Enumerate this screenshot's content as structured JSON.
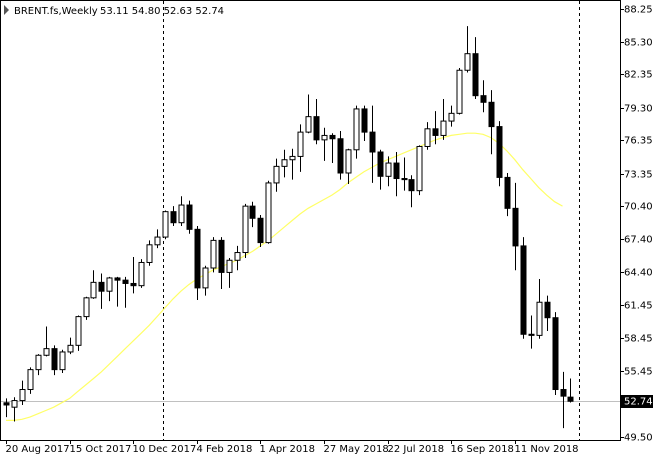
{
  "chart_data": {
    "type": "candlestick",
    "title": "BRENT.fs,Weekly",
    "ohlc_label": "53.11 54.80 52.63 52.74",
    "categories": [
      "20 Aug 2017",
      null,
      null,
      null,
      null,
      null,
      null,
      null,
      "15 Oct 2017",
      null,
      null,
      null,
      null,
      null,
      null,
      null,
      "10 Dec 2017",
      null,
      null,
      null,
      null,
      null,
      null,
      null,
      "4 Feb 2018",
      null,
      null,
      null,
      null,
      null,
      null,
      null,
      "1 Apr 2018",
      null,
      null,
      null,
      null,
      null,
      null,
      null,
      "27 May 2018",
      null,
      null,
      null,
      null,
      null,
      null,
      null,
      "22 Jul 2018",
      null,
      null,
      null,
      null,
      null,
      null,
      null,
      "16 Sep 2018",
      null,
      null,
      null,
      null,
      null,
      null,
      null,
      "11 Nov 2018",
      null,
      null,
      null,
      null,
      null,
      null,
      null
    ],
    "open": [
      52.6,
      52.2,
      52.8,
      53.8,
      55.6,
      56.9,
      57.5,
      55.6,
      57.2,
      57.8,
      60.4,
      62.1,
      63.5,
      62.7,
      63.9,
      63.7,
      63.4,
      63.2,
      65.3,
      66.9,
      67.6,
      69.9,
      68.9,
      70.5,
      68.3,
      63.0,
      64.8,
      67.3,
      64.4,
      65.5,
      66.2,
      70.4,
      69.3,
      67.1,
      72.5,
      74.0,
      74.6,
      74.9,
      77.1,
      78.5,
      76.4,
      76.8,
      76.5,
      73.4,
      75.5,
      79.2,
      77.1,
      75.3,
      73.1,
      74.3,
      72.9,
      72.8,
      71.8,
      75.8,
      77.4,
      76.8,
      78.1,
      78.8,
      82.7,
      84.2,
      80.4,
      79.8,
      77.6,
      73.0,
      70.2,
      66.8,
      58.8,
      58.7,
      61.7,
      60.3,
      53.8,
      53.11
    ],
    "high": [
      53.0,
      53.1,
      54.6,
      55.8,
      57.0,
      59.5,
      57.8,
      57.4,
      58.5,
      60.5,
      62.2,
      64.6,
      64.3,
      64.0,
      64.0,
      64.0,
      65.8,
      65.6,
      67.3,
      68.3,
      70.0,
      70.4,
      71.3,
      70.9,
      68.6,
      65.0,
      67.6,
      67.6,
      65.7,
      66.8,
      70.6,
      70.8,
      69.6,
      72.7,
      74.7,
      75.5,
      75.6,
      77.8,
      80.5,
      80.1,
      77.5,
      77.0,
      77.2,
      75.6,
      79.5,
      79.5,
      79.5,
      75.5,
      74.9,
      75.3,
      74.8,
      73.2,
      75.9,
      78.0,
      79.0,
      80.1,
      79.5,
      82.9,
      86.7,
      85.7,
      81.8,
      80.9,
      78.1,
      73.4,
      72.5,
      67.6,
      60.5,
      63.8,
      62.3,
      60.8,
      55.4,
      54.8
    ],
    "low": [
      51.3,
      50.9,
      52.4,
      53.4,
      55.1,
      56.8,
      55.1,
      55.3,
      57.0,
      57.3,
      60.1,
      62.0,
      61.1,
      61.8,
      61.3,
      61.2,
      62.5,
      63.0,
      65.0,
      66.6,
      67.4,
      68.6,
      68.6,
      67.9,
      61.9,
      62.3,
      64.4,
      62.9,
      63.0,
      64.6,
      65.7,
      68.5,
      66.7,
      67.0,
      71.7,
      73.0,
      72.8,
      73.5,
      77.0,
      76.0,
      74.5,
      74.3,
      72.8,
      72.4,
      74.7,
      76.3,
      72.5,
      71.9,
      72.2,
      71.3,
      71.8,
      70.3,
      71.4,
      75.5,
      76.0,
      76.4,
      77.6,
      78.7,
      82.5,
      80.1,
      78.9,
      75.1,
      72.2,
      69.5,
      64.6,
      58.4,
      57.5,
      58.4,
      59.1,
      53.3,
      50.3,
      52.63
    ],
    "close": [
      52.4,
      52.8,
      53.8,
      55.6,
      56.9,
      57.5,
      55.6,
      57.2,
      57.8,
      60.4,
      62.1,
      63.5,
      62.7,
      63.9,
      63.7,
      63.4,
      63.2,
      65.3,
      66.9,
      67.6,
      69.9,
      68.9,
      70.5,
      68.3,
      63.0,
      64.8,
      67.3,
      64.4,
      65.5,
      66.2,
      70.4,
      69.3,
      67.1,
      72.5,
      74.0,
      74.6,
      74.9,
      77.1,
      78.5,
      76.4,
      76.8,
      76.5,
      73.4,
      75.5,
      79.2,
      77.1,
      75.3,
      73.1,
      74.3,
      72.9,
      72.8,
      71.8,
      75.8,
      77.4,
      76.8,
      78.1,
      78.8,
      82.7,
      84.2,
      80.4,
      79.8,
      77.6,
      73.0,
      70.2,
      66.8,
      58.8,
      58.7,
      61.7,
      60.3,
      53.8,
      53.2,
      52.74
    ],
    "ma": {
      "color": "#ffff66",
      "values": [
        51.0,
        51.0,
        51.1,
        51.3,
        51.6,
        51.9,
        52.2,
        52.6,
        53.0,
        53.6,
        54.2,
        54.8,
        55.4,
        56.1,
        56.8,
        57.5,
        58.2,
        58.9,
        59.6,
        60.4,
        61.2,
        62.0,
        62.7,
        63.3,
        63.8,
        64.2,
        64.6,
        64.9,
        65.2,
        65.5,
        65.9,
        66.3,
        66.8,
        67.3,
        67.9,
        68.5,
        69.1,
        69.7,
        70.2,
        70.6,
        71.0,
        71.4,
        71.9,
        72.5,
        73.0,
        73.5,
        73.9,
        74.3,
        74.6,
        74.9,
        75.2,
        75.5,
        75.8,
        76.1,
        76.4,
        76.6,
        76.8,
        76.9,
        77.0,
        77.0,
        76.9,
        76.6,
        76.1,
        75.4,
        74.6,
        73.7,
        72.9,
        72.1,
        71.4,
        70.8,
        70.4,
        null
      ]
    },
    "up_color": "#ffffff",
    "down_color": "#000000",
    "last_price": {
      "value": 52.74,
      "label": "52.74"
    },
    "ylim": [
      49.23,
      89.06
    ],
    "yticks": [
      88.25,
      {
        "value": 85.3,
        "label": "85.30"
      },
      82.35,
      {
        "value": 79.3,
        "label": "79.30"
      },
      76.35,
      73.35,
      {
        "value": 70.4,
        "label": "70.40"
      },
      {
        "value": 67.4,
        "label": "67.40"
      },
      {
        "value": 64.4,
        "label": "64.40"
      },
      61.45,
      58.45,
      55.45,
      {
        "value": 49.5,
        "label": "49.50"
      }
    ]
  }
}
